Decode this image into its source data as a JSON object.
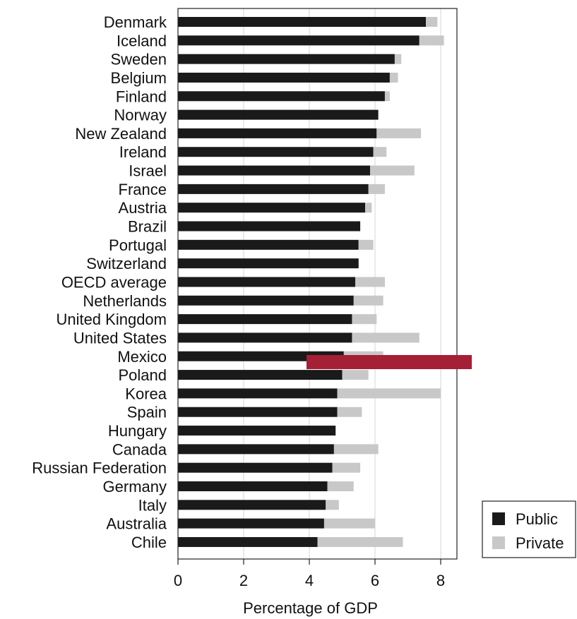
{
  "chart_data": {
    "type": "bar",
    "orientation": "horizontal",
    "stacked": true,
    "xlabel": "Percentage of GDP",
    "xlim": [
      0,
      8.5
    ],
    "xticks": [
      0,
      2,
      4,
      6,
      8
    ],
    "grid": "vertical",
    "legend_position": "bottom-right",
    "categories": [
      "Denmark",
      "Iceland",
      "Sweden",
      "Belgium",
      "Finland",
      "Norway",
      "New Zealand",
      "Ireland",
      "Israel",
      "France",
      "Austria",
      "Brazil",
      "Portugal",
      "Switzerland",
      "OECD average",
      "Netherlands",
      "United Kingdom",
      "United States",
      "Mexico",
      "Poland",
      "Korea",
      "Spain",
      "Hungary",
      "Canada",
      "Russian Federation",
      "Germany",
      "Italy",
      "Australia",
      "Chile"
    ],
    "series": [
      {
        "name": "Public",
        "color": "#1a1a1a",
        "values": [
          7.55,
          7.35,
          6.6,
          6.45,
          6.3,
          6.1,
          6.05,
          5.95,
          5.85,
          5.8,
          5.7,
          5.55,
          5.5,
          5.5,
          5.4,
          5.35,
          5.3,
          5.3,
          5.05,
          5.0,
          4.85,
          4.85,
          4.8,
          4.75,
          4.7,
          4.55,
          4.5,
          4.45,
          4.25
        ]
      },
      {
        "name": "Private",
        "color": "#c8c8c8",
        "values": [
          0.35,
          0.75,
          0.2,
          0.25,
          0.15,
          0.0,
          1.35,
          0.4,
          1.35,
          0.5,
          0.2,
          0.0,
          0.45,
          0.0,
          0.9,
          0.9,
          0.75,
          2.05,
          1.2,
          0.8,
          3.15,
          0.75,
          0.0,
          1.35,
          0.85,
          0.8,
          0.4,
          1.55,
          2.6
        ]
      }
    ],
    "legend": {
      "items": [
        {
          "label": "Public",
          "color": "#1a1a1a"
        },
        {
          "label": "Private",
          "color": "#c8c8c8"
        }
      ]
    },
    "annotation_bar_color": "#a51f35"
  }
}
